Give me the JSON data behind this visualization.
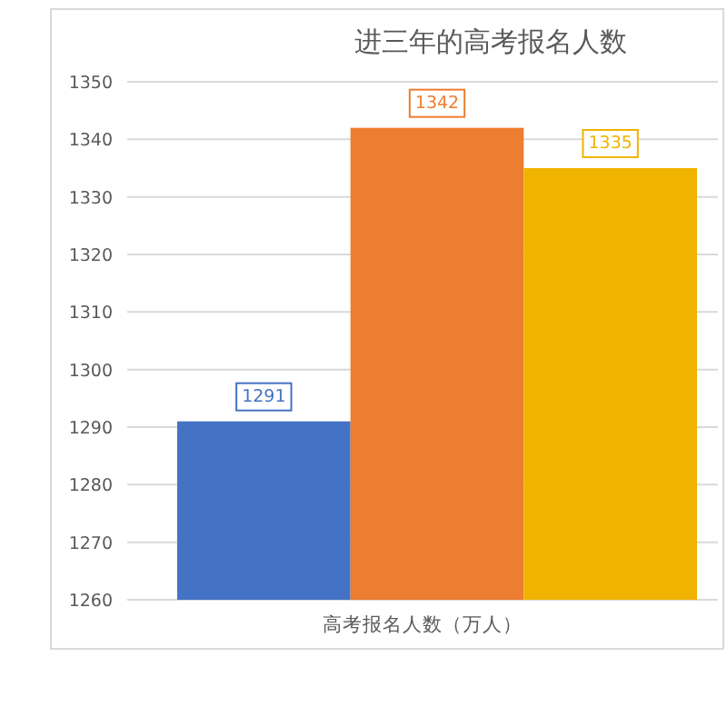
{
  "chart_data": {
    "type": "bar",
    "title": "进三年的高考报名人数",
    "categories": [
      "高考报名人数（万人）"
    ],
    "series": [
      {
        "color": "#4472c4",
        "values": [
          1291
        ]
      },
      {
        "color": "#ed7d31",
        "values": [
          1342
        ]
      },
      {
        "color": "#f0b400",
        "values": [
          1335
        ]
      }
    ],
    "ylim": [
      1260,
      1350
    ],
    "yticks": [
      1260,
      1270,
      1280,
      1290,
      1300,
      1310,
      1320,
      1330,
      1340,
      1350
    ],
    "grid": "y",
    "data_labels": true
  }
}
